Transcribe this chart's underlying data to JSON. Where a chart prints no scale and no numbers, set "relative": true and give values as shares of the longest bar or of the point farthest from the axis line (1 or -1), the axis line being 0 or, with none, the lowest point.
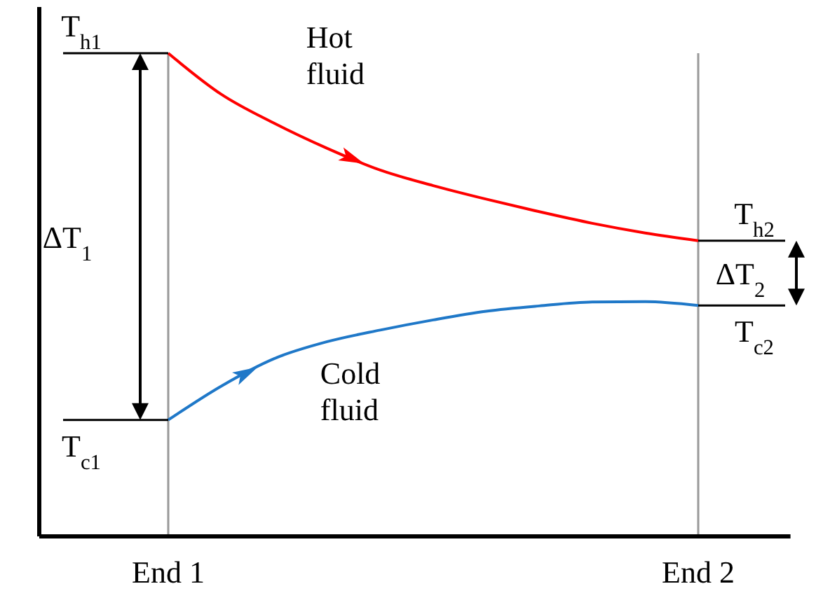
{
  "chart_data": {
    "type": "line",
    "relative": true,
    "categories": [
      null,
      null,
      "End 1",
      null,
      null,
      null,
      null,
      null,
      null,
      null,
      null,
      null,
      "End 2",
      null
    ],
    "series": [
      {
        "name": "Hot fluid",
        "color": "#ff0000",
        "values": [
          null,
          null,
          1,
          0.915,
          0.855,
          0.803,
          0.758,
          0.726,
          0.698,
          0.672,
          0.648,
          0.628,
          0.612,
          null
        ]
      },
      {
        "name": "Cold fluid",
        "color": "#1f78c8",
        "values": [
          null,
          null,
          0.241,
          0.311,
          0.368,
          0.403,
          0.427,
          0.448,
          0.466,
          0.477,
          0.485,
          0.486,
          0.478,
          null
        ]
      }
    ],
    "ref_lines": [
      {
        "axis": "x",
        "value": "End 1",
        "color": "#999999"
      },
      {
        "axis": "x",
        "value": "End 2",
        "color": "#999999"
      }
    ],
    "annotations": [
      {
        "text": "T$_{h1}$",
        "x": "End 1",
        "y": 1
      },
      {
        "text": "T$_{c1}$",
        "x": "End 1",
        "y": 0.241
      },
      "ΔT$_{1}$",
      {
        "text": "T$_{h2}$",
        "x": "End 2",
        "y": 0.612
      },
      {
        "text": "T$_{c2}$",
        "x": "End 2",
        "y": 0.478
      },
      "ΔT$_{2}$"
    ]
  }
}
